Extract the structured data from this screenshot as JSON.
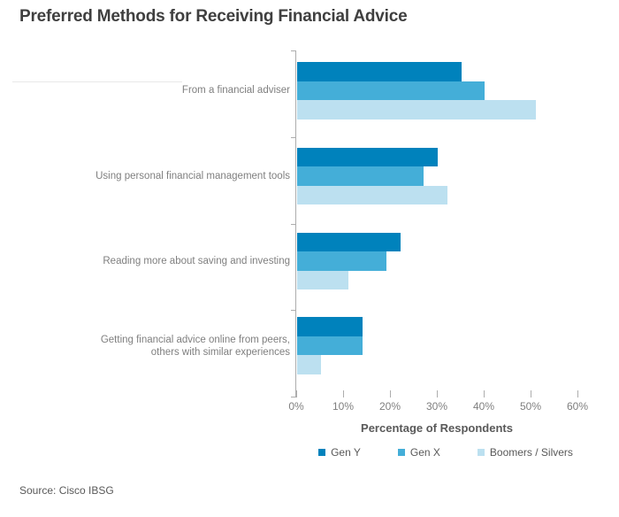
{
  "title": "Preferred Methods for Receiving Financial Advice",
  "source": "Source: Cisco IBSG",
  "chart_data": {
    "type": "bar",
    "orientation": "horizontal",
    "title": "Preferred Methods for Receiving Financial Advice",
    "categories": [
      "From a financial adviser",
      "Using personal financial management tools",
      "Reading more about saving and investing",
      "Getting financial advice online from peers,\nothers with similar experiences"
    ],
    "series": [
      {
        "name": "Gen Y",
        "color": "#0082BC",
        "values": [
          35,
          30,
          22,
          14
        ]
      },
      {
        "name": "Gen X",
        "color": "#44AED8",
        "values": [
          40,
          27,
          19,
          14
        ]
      },
      {
        "name": "Boomers / Silvers",
        "color": "#BCE0F0",
        "values": [
          51,
          32,
          11,
          5
        ]
      }
    ],
    "xlabel": "Percentage of Respondents",
    "xlim": [
      0,
      60
    ],
    "xticks": [
      "0%",
      "10%",
      "20%",
      "30%",
      "40%",
      "50%",
      "60%"
    ],
    "legend_position": "bottom",
    "grid": false,
    "axis_color": "#adadad",
    "label_color": "#7f7f7f"
  }
}
